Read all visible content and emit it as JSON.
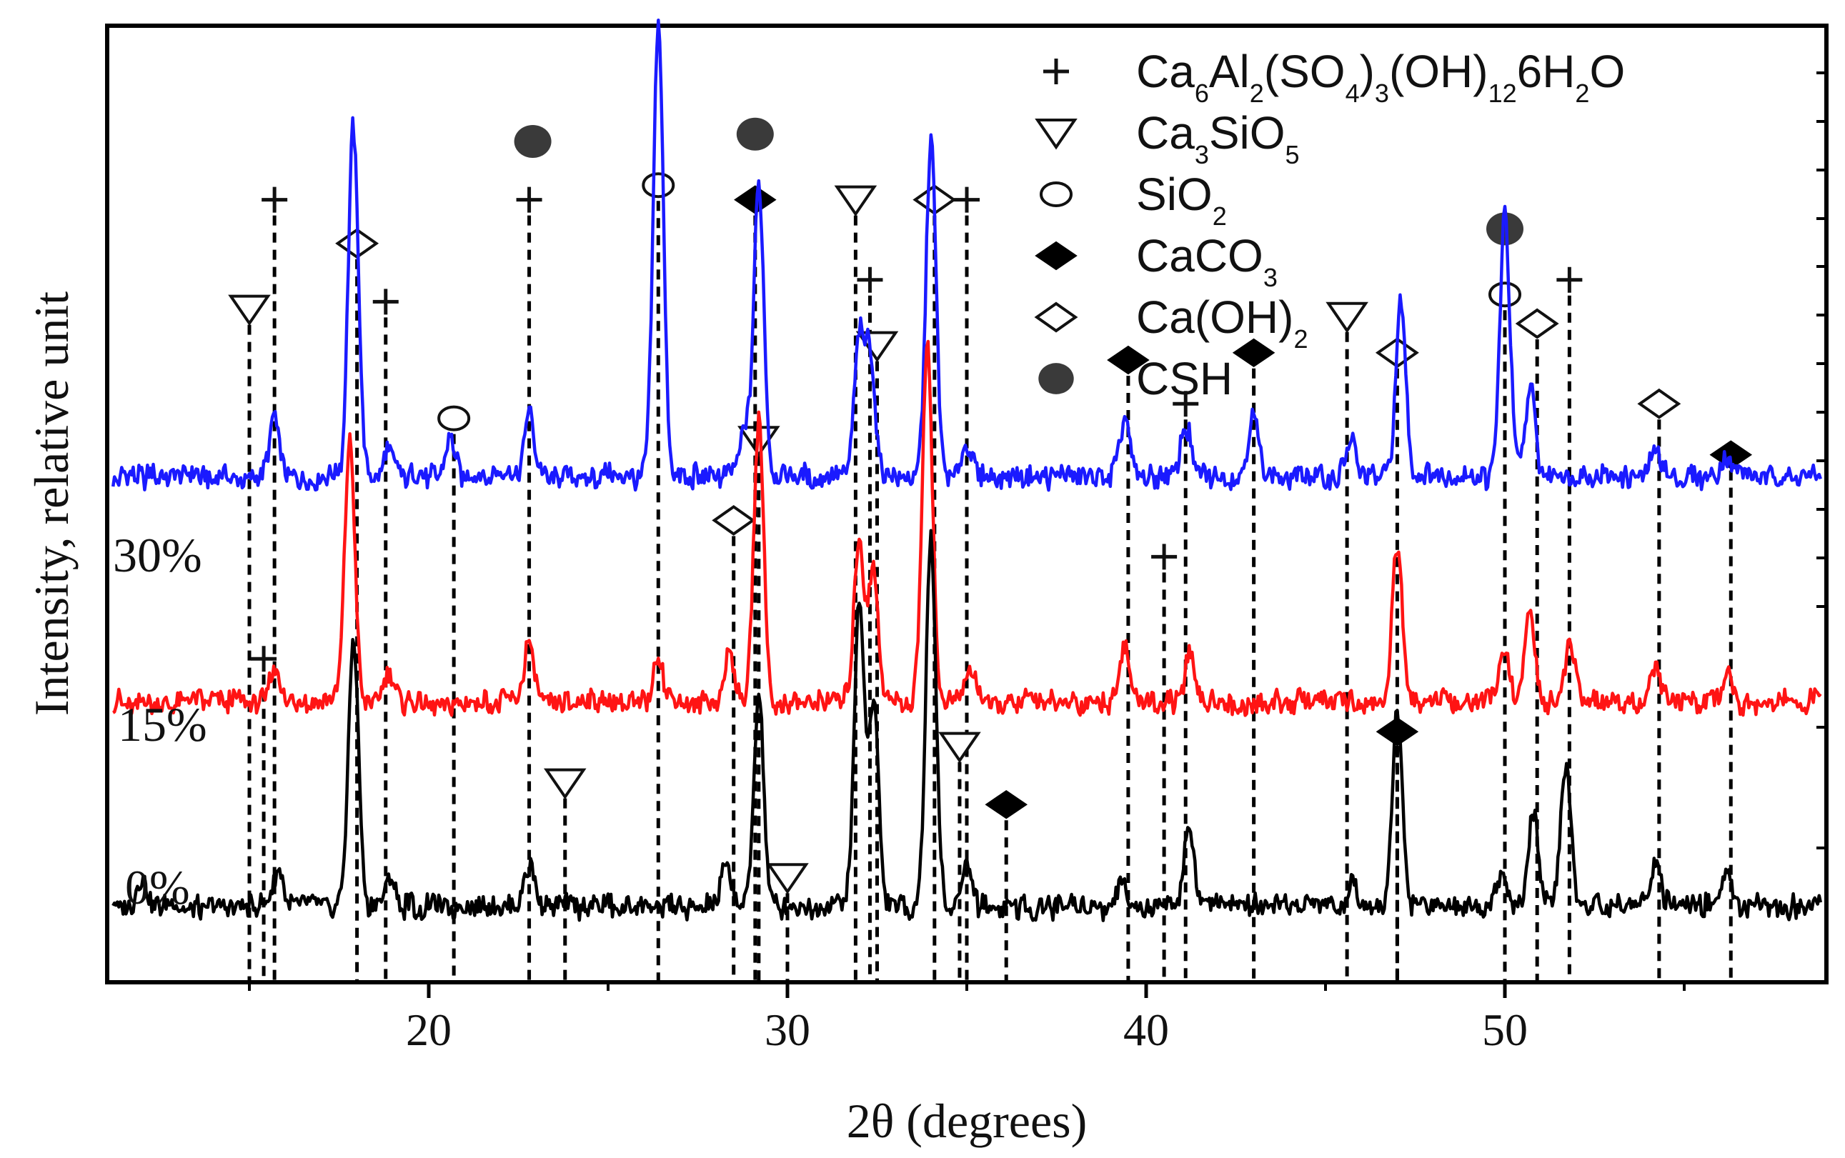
{
  "chart_data": {
    "type": "line",
    "title": "",
    "xlabel": "2θ (degrees)",
    "ylabel": "Intensity, relative unit",
    "xlim": [
      11,
      59
    ],
    "ylim": [
      0,
      100
    ],
    "x_ticks": [
      20,
      30,
      40,
      50
    ],
    "grid": false,
    "legend_position": "top-right",
    "series": [
      {
        "name": "30%",
        "color": "#1a1aff",
        "baseline": 64,
        "peaks": [
          {
            "x": 15.7,
            "h": 8
          },
          {
            "x": 17.9,
            "h": 48
          },
          {
            "x": 18.9,
            "h": 4
          },
          {
            "x": 20.6,
            "h": 6
          },
          {
            "x": 22.8,
            "h": 9
          },
          {
            "x": 26.4,
            "h": 62
          },
          {
            "x": 28.8,
            "h": 6
          },
          {
            "x": 29.2,
            "h": 40
          },
          {
            "x": 32.0,
            "h": 18
          },
          {
            "x": 32.3,
            "h": 16
          },
          {
            "x": 34.0,
            "h": 46
          },
          {
            "x": 35.0,
            "h": 5
          },
          {
            "x": 39.4,
            "h": 8
          },
          {
            "x": 41.1,
            "h": 7
          },
          {
            "x": 43.0,
            "h": 8
          },
          {
            "x": 45.7,
            "h": 5
          },
          {
            "x": 47.1,
            "h": 24
          },
          {
            "x": 50.0,
            "h": 36
          },
          {
            "x": 50.7,
            "h": 12
          },
          {
            "x": 54.2,
            "h": 4
          },
          {
            "x": 56.2,
            "h": 3
          }
        ]
      },
      {
        "name": "15%",
        "color": "#ff1414",
        "baseline": 33,
        "peaks": [
          {
            "x": 15.7,
            "h": 5
          },
          {
            "x": 17.8,
            "h": 36
          },
          {
            "x": 18.9,
            "h": 4
          },
          {
            "x": 22.8,
            "h": 8
          },
          {
            "x": 26.4,
            "h": 6
          },
          {
            "x": 28.4,
            "h": 7
          },
          {
            "x": 29.2,
            "h": 38
          },
          {
            "x": 32.0,
            "h": 22
          },
          {
            "x": 32.4,
            "h": 18
          },
          {
            "x": 33.9,
            "h": 50
          },
          {
            "x": 35.1,
            "h": 5
          },
          {
            "x": 39.4,
            "h": 8
          },
          {
            "x": 41.2,
            "h": 6
          },
          {
            "x": 47.0,
            "h": 21
          },
          {
            "x": 50.0,
            "h": 7
          },
          {
            "x": 50.7,
            "h": 13
          },
          {
            "x": 51.8,
            "h": 8
          },
          {
            "x": 54.2,
            "h": 5
          },
          {
            "x": 56.2,
            "h": 4
          }
        ]
      },
      {
        "name": "0%",
        "color": "#000000",
        "baseline": 5,
        "peaks": [
          {
            "x": 12.0,
            "h": 4
          },
          {
            "x": 15.8,
            "h": 5
          },
          {
            "x": 17.9,
            "h": 37
          },
          {
            "x": 18.9,
            "h": 4
          },
          {
            "x": 22.8,
            "h": 6
          },
          {
            "x": 28.3,
            "h": 6
          },
          {
            "x": 29.2,
            "h": 29
          },
          {
            "x": 32.0,
            "h": 42
          },
          {
            "x": 32.4,
            "h": 28
          },
          {
            "x": 34.0,
            "h": 51
          },
          {
            "x": 35.0,
            "h": 6
          },
          {
            "x": 39.3,
            "h": 3
          },
          {
            "x": 41.2,
            "h": 11
          },
          {
            "x": 45.8,
            "h": 3
          },
          {
            "x": 47.0,
            "h": 27
          },
          {
            "x": 49.9,
            "h": 4
          },
          {
            "x": 50.8,
            "h": 13
          },
          {
            "x": 51.7,
            "h": 19
          },
          {
            "x": 54.2,
            "h": 6
          },
          {
            "x": 56.2,
            "h": 5
          }
        ]
      }
    ],
    "legend": [
      {
        "symbol": "plus",
        "label": "Ca",
        "parts": [
          [
            "Ca",
            ""
          ],
          [
            "6",
            "sub"
          ],
          [
            "Al",
            ""
          ],
          [
            "2",
            "sub"
          ],
          [
            "(SO",
            ""
          ],
          [
            "4",
            "sub"
          ],
          [
            ")",
            ""
          ],
          [
            "3",
            "sub"
          ],
          [
            "(OH)",
            ""
          ],
          [
            "12",
            "sub"
          ],
          [
            "6H",
            ""
          ],
          [
            "2",
            "sub"
          ],
          [
            "O",
            ""
          ]
        ],
        "color": "#111111"
      },
      {
        "symbol": "triangle",
        "label": "Ca3SiO5",
        "parts": [
          [
            "Ca",
            ""
          ],
          [
            "3",
            "sub"
          ],
          [
            "SiO",
            ""
          ],
          [
            "5",
            "sub"
          ]
        ],
        "color": "#111111"
      },
      {
        "symbol": "circle",
        "label": "SiO2",
        "parts": [
          [
            "SiO",
            ""
          ],
          [
            "2",
            "sub"
          ]
        ],
        "color": "#111111"
      },
      {
        "symbol": "diamond-filled",
        "label": "CaCO3",
        "parts": [
          [
            "CaCO",
            ""
          ],
          [
            "3",
            "sub"
          ]
        ],
        "color": "#111111"
      },
      {
        "symbol": "diamond",
        "label": "Ca(OH)2",
        "parts": [
          [
            "Ca(OH)",
            ""
          ],
          [
            "2",
            "sub"
          ]
        ],
        "color": "#111111"
      },
      {
        "symbol": "csh",
        "label": "CSH",
        "parts": [
          [
            "CSH",
            ""
          ]
        ],
        "color": "#333333"
      }
    ],
    "phase_markers": [
      {
        "x": 15.0,
        "y_top": 87,
        "symbol": "triangle"
      },
      {
        "x": 15.7,
        "y_top": 102,
        "symbol": "plus"
      },
      {
        "x": 15.4,
        "y_top": 39,
        "symbol": "plus"
      },
      {
        "x": 18.0,
        "y_top": 96,
        "symbol": "diamond"
      },
      {
        "x": 18.8,
        "y_top": 88,
        "symbol": "plus"
      },
      {
        "x": 20.7,
        "y_top": 72,
        "symbol": "circle"
      },
      {
        "x": 22.8,
        "y_top": 102,
        "symbol": "plus"
      },
      {
        "x": 22.9,
        "y_top": 110,
        "symbol": "csh",
        "nodash": true
      },
      {
        "x": 23.8,
        "y_top": 22,
        "symbol": "triangle"
      },
      {
        "x": 26.4,
        "y_top": 104,
        "symbol": "circle"
      },
      {
        "x": 28.5,
        "y_top": 58,
        "symbol": "diamond"
      },
      {
        "x": 29.2,
        "y_top": 69,
        "symbol": "triangle"
      },
      {
        "x": 29.1,
        "y_top": 102,
        "symbol": "diamond-filled"
      },
      {
        "x": 29.1,
        "y_top": 111,
        "symbol": "csh",
        "nodash": true
      },
      {
        "x": 30.0,
        "y_top": 9,
        "symbol": "triangle"
      },
      {
        "x": 31.9,
        "y_top": 102,
        "symbol": "triangle"
      },
      {
        "x": 32.3,
        "y_top": 91,
        "symbol": "plus"
      },
      {
        "x": 32.5,
        "y_top": 82,
        "symbol": "triangle"
      },
      {
        "x": 34.1,
        "y_top": 102,
        "symbol": "diamond"
      },
      {
        "x": 35.0,
        "y_top": 102,
        "symbol": "plus"
      },
      {
        "x": 34.8,
        "y_top": 27,
        "symbol": "triangle"
      },
      {
        "x": 36.1,
        "y_top": 19,
        "symbol": "diamond-filled"
      },
      {
        "x": 39.5,
        "y_top": 80,
        "symbol": "diamond-filled"
      },
      {
        "x": 41.1,
        "y_top": 74,
        "symbol": "plus"
      },
      {
        "x": 40.5,
        "y_top": 53,
        "symbol": "plus"
      },
      {
        "x": 43.0,
        "y_top": 81,
        "symbol": "diamond-filled"
      },
      {
        "x": 45.6,
        "y_top": 86,
        "symbol": "triangle"
      },
      {
        "x": 47.0,
        "y_top": 81,
        "symbol": "diamond"
      },
      {
        "x": 47.0,
        "y_top": 29,
        "symbol": "diamond-filled"
      },
      {
        "x": 50.0,
        "y_top": 89,
        "symbol": "circle"
      },
      {
        "x": 50.0,
        "y_top": 98,
        "symbol": "csh",
        "nodash": true
      },
      {
        "x": 50.9,
        "y_top": 85,
        "symbol": "diamond"
      },
      {
        "x": 51.8,
        "y_top": 91,
        "symbol": "plus"
      },
      {
        "x": 54.3,
        "y_top": 74,
        "symbol": "diamond"
      },
      {
        "x": 56.3,
        "y_top": 67,
        "symbol": "diamond-filled"
      }
    ]
  },
  "series_labels": {
    "s30": "30%",
    "s15": "15%",
    "s0": "0%"
  }
}
